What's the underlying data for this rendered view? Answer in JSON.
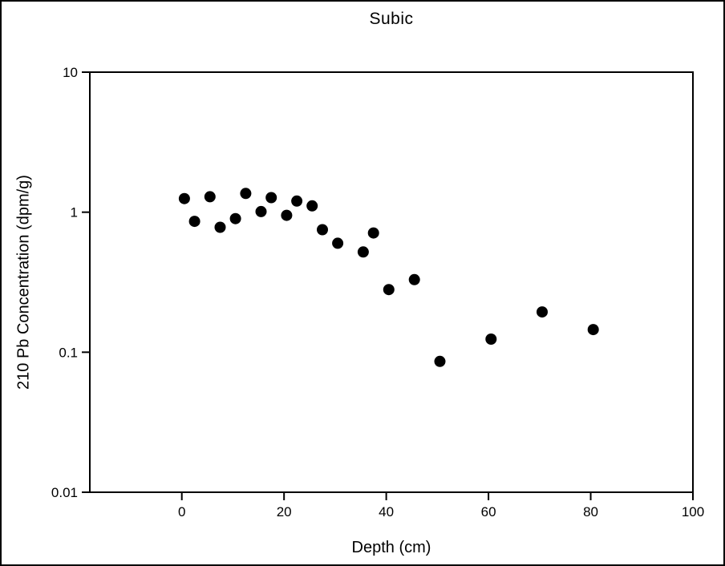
{
  "figure": {
    "background": "#ffffff",
    "frame_color": "#000000"
  },
  "chart_data": {
    "type": "scatter",
    "title": "Subic",
    "xlabel": "Depth (cm)",
    "ylabel": "210 Pb Concentration (dpm/g)",
    "grid": false,
    "legend": "none",
    "x_axis": {
      "min": -18,
      "max": 100,
      "scale": "linear",
      "ticks": [
        0,
        20,
        40,
        60,
        80,
        100
      ]
    },
    "y_axis": {
      "min": 0.01,
      "max": 10,
      "scale": "log",
      "ticks": [
        {
          "label": "10",
          "value": 10
        },
        {
          "label": "1",
          "value": 1
        },
        {
          "label": "0.1",
          "value": 0.1
        },
        {
          "label": "0.01",
          "value": 0.01
        }
      ]
    },
    "series": [
      {
        "name": "210Pb concentration",
        "marker": "filled-circle",
        "color": "#000000",
        "points": [
          {
            "depth": 0.5,
            "conc": 1.25
          },
          {
            "depth": 2.5,
            "conc": 0.86
          },
          {
            "depth": 5.5,
            "conc": 1.29
          },
          {
            "depth": 7.5,
            "conc": 0.78
          },
          {
            "depth": 10.5,
            "conc": 0.9
          },
          {
            "depth": 12.5,
            "conc": 1.36
          },
          {
            "depth": 15.5,
            "conc": 1.01
          },
          {
            "depth": 17.5,
            "conc": 1.27
          },
          {
            "depth": 20.5,
            "conc": 0.95
          },
          {
            "depth": 22.5,
            "conc": 1.2
          },
          {
            "depth": 25.5,
            "conc": 1.11
          },
          {
            "depth": 27.5,
            "conc": 0.75
          },
          {
            "depth": 30.5,
            "conc": 0.6
          },
          {
            "depth": 35.5,
            "conc": 0.52
          },
          {
            "depth": 37.5,
            "conc": 0.71
          },
          {
            "depth": 40.5,
            "conc": 0.28
          },
          {
            "depth": 45.5,
            "conc": 0.33
          },
          {
            "depth": 50.5,
            "conc": 0.086
          },
          {
            "depth": 60.5,
            "conc": 0.124
          },
          {
            "depth": 70.5,
            "conc": 0.194
          },
          {
            "depth": 80.5,
            "conc": 0.145
          }
        ]
      }
    ]
  }
}
